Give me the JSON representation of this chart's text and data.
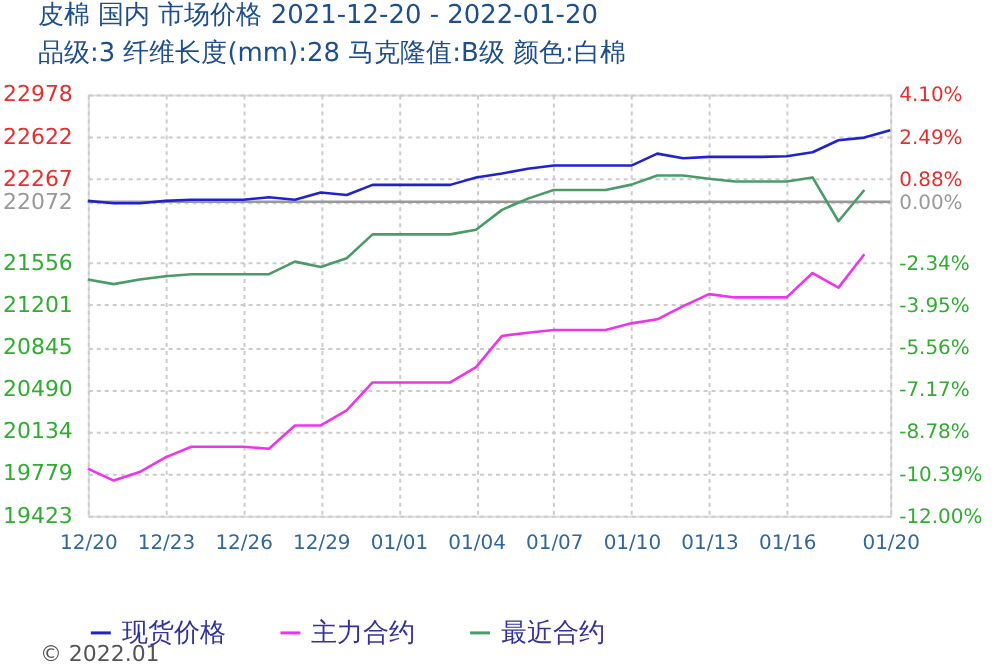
{
  "chart_data": {
    "type": "line",
    "title": "皮棉 国内 市场价格 2021-12-20 - 2022-01-20",
    "subtitle": "品级:3 纤维长度(mm):28 马克隆值:B级 颜色:白棉",
    "annotations": [
      "© 2022.01"
    ],
    "x": [
      "2021-12-20",
      "2021-12-21",
      "2021-12-22",
      "2021-12-23",
      "2021-12-24",
      "2021-12-25",
      "2021-12-26",
      "2021-12-27",
      "2021-12-28",
      "2021-12-29",
      "2021-12-30",
      "2021-12-31",
      "2022-01-01",
      "2022-01-02",
      "2022-01-03",
      "2022-01-04",
      "2022-01-05",
      "2022-01-06",
      "2022-01-07",
      "2022-01-08",
      "2022-01-09",
      "2022-01-10",
      "2022-01-11",
      "2022-01-12",
      "2022-01-13",
      "2022-01-14",
      "2022-01-15",
      "2022-01-16",
      "2022-01-17",
      "2022-01-18",
      "2022-01-19",
      "2022-01-20"
    ],
    "series": [
      {
        "name": "现货价格",
        "color": "#2222cc",
        "values": [
          22080,
          22060,
          22060,
          22080,
          22090,
          22090,
          22090,
          22110,
          22090,
          22150,
          22130,
          22215,
          22215,
          22215,
          22215,
          22278,
          22311,
          22351,
          22378,
          22378,
          22378,
          22378,
          22479,
          22440,
          22451,
          22451,
          22451,
          22457,
          22490,
          22592,
          22614,
          22676
        ]
      },
      {
        "name": "主力合约",
        "color": "#ee33ee",
        "values": [
          19820,
          19719,
          19791,
          19915,
          20004,
          20004,
          20004,
          19987,
          20184,
          20184,
          20312,
          20547,
          20547,
          20547,
          20547,
          20676,
          20940,
          20967,
          20990,
          20990,
          20990,
          21046,
          21080,
          21192,
          21293,
          21265,
          21265,
          21265,
          21471,
          21348,
          21629,
          null
        ]
      },
      {
        "name": "最近合约",
        "color": "#4a9a6a",
        "values": [
          21416,
          21377,
          21416,
          21444,
          21461,
          21461,
          21461,
          21461,
          21567,
          21522,
          21595,
          21797,
          21797,
          21797,
          21797,
          21836,
          22004,
          22099,
          22172,
          22172,
          22172,
          22217,
          22294,
          22294,
          22266,
          22244,
          22244,
          22244,
          22278,
          21908,
          22172,
          null
        ]
      }
    ],
    "xlim": [
      "2021-12-20",
      "2022-01-20"
    ],
    "xticks": [
      {
        "value": "2021-12-20",
        "label": "12/20"
      },
      {
        "value": "2021-12-23",
        "label": "12/23"
      },
      {
        "value": "2021-12-26",
        "label": "12/26"
      },
      {
        "value": "2021-12-29",
        "label": "12/29"
      },
      {
        "value": "2022-01-01",
        "label": "01/01"
      },
      {
        "value": "2022-01-04",
        "label": "01/04"
      },
      {
        "value": "2022-01-07",
        "label": "01/07"
      },
      {
        "value": "2022-01-10",
        "label": "01/10"
      },
      {
        "value": "2022-01-13",
        "label": "01/13"
      },
      {
        "value": "2022-01-16",
        "label": "01/16"
      },
      {
        "value": "2022-01-20",
        "label": "01/20"
      }
    ],
    "ylim": [
      19423,
      22978
    ],
    "yticks": [
      19423,
      19779,
      20134,
      20490,
      20845,
      21201,
      21556,
      22072,
      22267,
      22622,
      22978
    ],
    "y2lim": [
      -12.0,
      4.1
    ],
    "y2ticks": [
      {
        "value": -12.0,
        "label": "-12.00%"
      },
      {
        "value": -10.39,
        "label": "-10.39%"
      },
      {
        "value": -8.78,
        "label": "-8.78%"
      },
      {
        "value": -7.17,
        "label": "-7.17%"
      },
      {
        "value": -5.56,
        "label": "-5.56%"
      },
      {
        "value": -3.95,
        "label": "-3.95%"
      },
      {
        "value": -2.34,
        "label": "-2.34%"
      },
      {
        "value": 0,
        "label": "0.00%"
      },
      {
        "value": 0.88,
        "label": "0.88%"
      },
      {
        "value": 2.49,
        "label": "2.49%"
      },
      {
        "value": 4.1,
        "label": "4.10%"
      }
    ],
    "ref_lines": [
      {
        "axis": "y2",
        "value": 0,
        "color": "#999999"
      }
    ],
    "grid": true,
    "legend": "bottom",
    "marker": "none",
    "line_style": "solid"
  }
}
